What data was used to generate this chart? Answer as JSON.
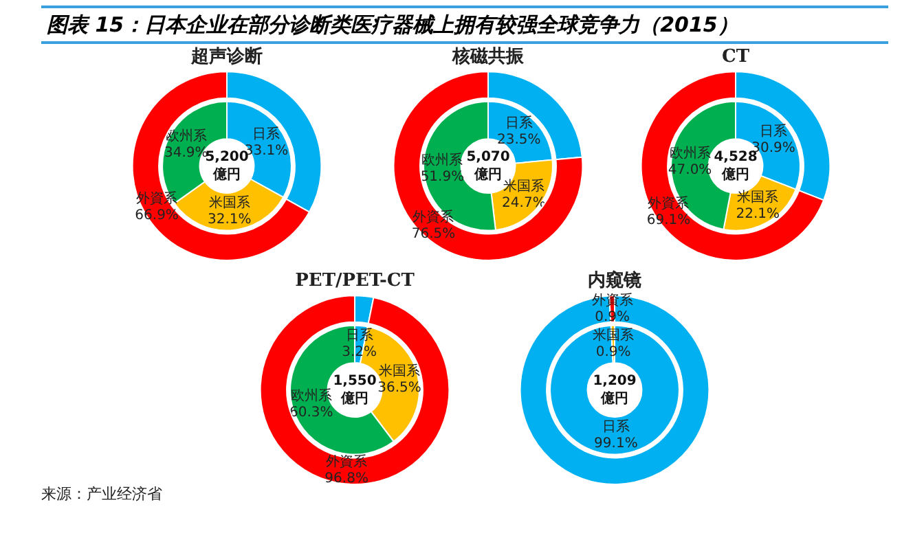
{
  "chart_data": [
    {
      "type": "other",
      "title": "图表 15：日本企业在部分诊断类医疗器械上拥有较强全球竞争力（2015）",
      "annotations": [
        "来源：产业经济省"
      ]
    },
    {
      "type": "donut",
      "title": "超声诊断",
      "categories": [
        null,
        "外資系"
      ],
      "colors": [
        "#00b0f0",
        "#ff0000"
      ],
      "values": [
        33.1,
        66.9
      ],
      "value_labels": [
        null,
        "66.9%"
      ],
      "legend": false
    },
    {
      "type": "donut",
      "categories": [
        "日系",
        "米国系",
        "欧州系"
      ],
      "colors": [
        "#00b0f0",
        "#ffc000",
        "#00b050"
      ],
      "values": [
        33.1,
        32.1,
        34.9
      ],
      "value_labels": [
        "33.1%",
        "32.1%",
        "34.9%"
      ],
      "annotations": [
        "5,200",
        "億円"
      ],
      "legend": false
    },
    {
      "type": "donut",
      "title": "核磁共振",
      "categories": [
        null,
        "外資系"
      ],
      "colors": [
        "#00b0f0",
        "#ff0000"
      ],
      "values": [
        23.5,
        76.5
      ],
      "value_labels": [
        null,
        "76.5%"
      ],
      "legend": false
    },
    {
      "type": "donut",
      "categories": [
        "日系",
        "米国系",
        "欧州系"
      ],
      "colors": [
        "#00b0f0",
        "#ffc000",
        "#00b050"
      ],
      "values": [
        23.5,
        24.7,
        51.9
      ],
      "value_labels": [
        "23.5%",
        "24.7%",
        "51.9%"
      ],
      "annotations": [
        "5,070",
        "億円"
      ],
      "legend": false
    },
    {
      "type": "donut",
      "title": "CT",
      "categories": [
        null,
        "外資系"
      ],
      "colors": [
        "#00b0f0",
        "#ff0000"
      ],
      "values": [
        30.9,
        69.1
      ],
      "value_labels": [
        null,
        "69.1%"
      ],
      "legend": false
    },
    {
      "type": "donut",
      "categories": [
        "日系",
        "米国系",
        "欧州系"
      ],
      "colors": [
        "#00b0f0",
        "#ffc000",
        "#00b050"
      ],
      "values": [
        30.9,
        22.1,
        47.0
      ],
      "value_labels": [
        "30.9%",
        "22.1%",
        "47.0%"
      ],
      "annotations": [
        "4,528",
        "億円"
      ],
      "legend": false
    },
    {
      "type": "donut",
      "title": "PET/PET-CT",
      "categories": [
        null,
        "外資系"
      ],
      "colors": [
        "#00b0f0",
        "#ff0000"
      ],
      "values": [
        3.2,
        96.8
      ],
      "value_labels": [
        null,
        "96.8%"
      ],
      "legend": false
    },
    {
      "type": "donut",
      "categories": [
        "日系",
        "米国系",
        "欧州系"
      ],
      "colors": [
        "#00b0f0",
        "#ffc000",
        "#00b050"
      ],
      "values": [
        3.2,
        36.5,
        60.3
      ],
      "value_labels": [
        "3.2%",
        "36.5%",
        "60.3%"
      ],
      "annotations": [
        "1,550",
        "億円"
      ],
      "legend": false
    },
    {
      "type": "donut",
      "title": "内窥镜",
      "categories": [
        null,
        "外資系"
      ],
      "colors": [
        "#00b0f0",
        "#ff0000"
      ],
      "values": [
        99.1,
        0.9
      ],
      "value_labels": [
        null,
        "0.9%"
      ],
      "legend": false
    },
    {
      "type": "donut",
      "categories": [
        "日系",
        "米国系"
      ],
      "colors": [
        "#00b0f0",
        "#ffc000"
      ],
      "values": [
        99.1,
        0.9
      ],
      "value_labels": [
        "99.1%",
        "0.9%"
      ],
      "annotations": [
        "1,209",
        "億円"
      ],
      "legend": false
    }
  ]
}
